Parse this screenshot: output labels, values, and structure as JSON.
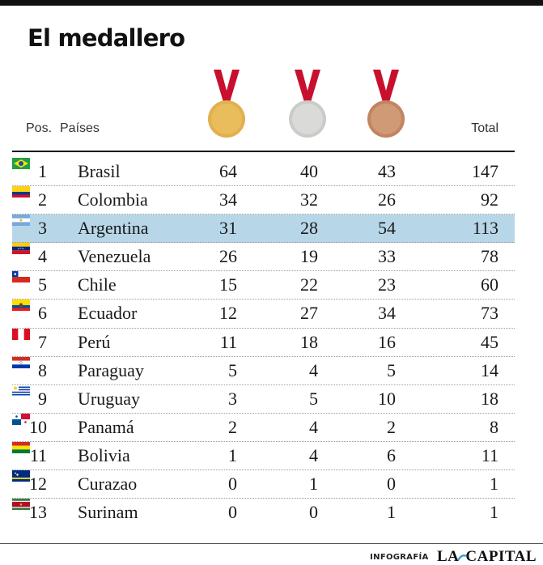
{
  "title": "El medallero",
  "header": {
    "pos": "Pos.",
    "country": "Países",
    "total": "Total"
  },
  "medals": [
    {
      "icon": "gold-medal-icon",
      "color": "#e2b04e",
      "ribbon": "#c8102e"
    },
    {
      "icon": "silver-medal-icon",
      "color": "#d2d2d0",
      "ribbon": "#c8102e"
    },
    {
      "icon": "bronze-medal-icon",
      "color": "#c98c68",
      "ribbon": "#c8102e"
    }
  ],
  "highlight_color": "#b7d7e8",
  "rows": [
    {
      "pos": "1",
      "country": "Brasil",
      "flag": "brazil-flag-icon",
      "gold": "64",
      "silver": "40",
      "bronze": "43",
      "total": "147"
    },
    {
      "pos": "2",
      "country": "Colombia",
      "flag": "colombia-flag-icon",
      "gold": "34",
      "silver": "32",
      "bronze": "26",
      "total": "92"
    },
    {
      "pos": "3",
      "country": "Argentina",
      "flag": "argentina-flag-icon",
      "gold": "31",
      "silver": "28",
      "bronze": "54",
      "total": "113"
    },
    {
      "pos": "4",
      "country": "Venezuela",
      "flag": "venezuela-flag-icon",
      "gold": "26",
      "silver": "19",
      "bronze": "33",
      "total": "78"
    },
    {
      "pos": "5",
      "country": "Chile",
      "flag": "chile-flag-icon",
      "gold": "15",
      "silver": "22",
      "bronze": "23",
      "total": "60"
    },
    {
      "pos": "6",
      "country": "Ecuador",
      "flag": "ecuador-flag-icon",
      "gold": "12",
      "silver": "27",
      "bronze": "34",
      "total": "73"
    },
    {
      "pos": "7",
      "country": "Perú",
      "flag": "peru-flag-icon",
      "gold": "11",
      "silver": "18",
      "bronze": "16",
      "total": "45"
    },
    {
      "pos": "8",
      "country": "Paraguay",
      "flag": "paraguay-flag-icon",
      "gold": "5",
      "silver": "4",
      "bronze": "5",
      "total": "14"
    },
    {
      "pos": "9",
      "country": "Uruguay",
      "flag": "uruguay-flag-icon",
      "gold": "3",
      "silver": "5",
      "bronze": "10",
      "total": "18"
    },
    {
      "pos": "10",
      "country": "Panamá",
      "flag": "panama-flag-icon",
      "gold": "2",
      "silver": "4",
      "bronze": "2",
      "total": "8"
    },
    {
      "pos": "11",
      "country": "Bolivia",
      "flag": "bolivia-flag-icon",
      "gold": "1",
      "silver": "4",
      "bronze": "6",
      "total": "11"
    },
    {
      "pos": "12",
      "country": "Curazao",
      "flag": "curacao-flag-icon",
      "gold": "0",
      "silver": "1",
      "bronze": "0",
      "total": "1"
    },
    {
      "pos": "13",
      "country": "Surinam",
      "flag": "suriname-flag-icon",
      "gold": "0",
      "silver": "0",
      "bronze": "1",
      "total": "1"
    }
  ],
  "footer": {
    "credit": "INFOGRAFÍA",
    "brand_left": "LA",
    "brand_right": "CAPITAL",
    "brand_icon": "la-capital-logo-icon"
  }
}
